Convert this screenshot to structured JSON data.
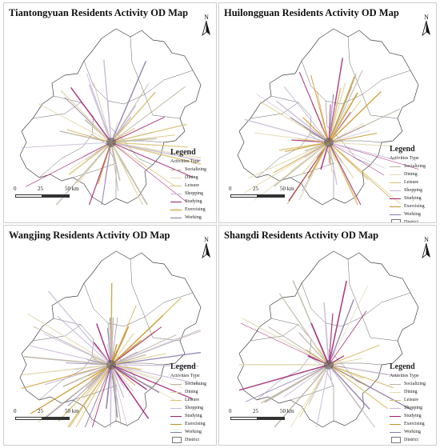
{
  "panels": [
    {
      "title": "Tiantongyuan Residents Activity OD Map",
      "density": 55
    },
    {
      "title": "Huilongguan Residents Activity OD Map",
      "density": 75
    },
    {
      "title": "Wangjing Residents Activity OD Map",
      "density": 90
    },
    {
      "title": "Shangdi Residents Activity OD Map",
      "density": 45
    }
  ],
  "legend": {
    "title": "Legend",
    "subtitle": "Activities Type",
    "items": [
      {
        "label": "Socializing",
        "color": "#b8b0a0"
      },
      {
        "label": "Dining",
        "color": "#e0d8b0"
      },
      {
        "label": "Leisure",
        "color": "#d8c070"
      },
      {
        "label": "Shopping",
        "color": "#c8b8d8"
      },
      {
        "label": "Studying",
        "color": "#a02070"
      },
      {
        "label": "Exercising",
        "color": "#c89020"
      },
      {
        "label": "Working",
        "color": "#8878a8"
      }
    ],
    "district_label": "District"
  },
  "scale": {
    "ticks": [
      "0",
      "25",
      "50 km"
    ]
  },
  "north_label": "N"
}
